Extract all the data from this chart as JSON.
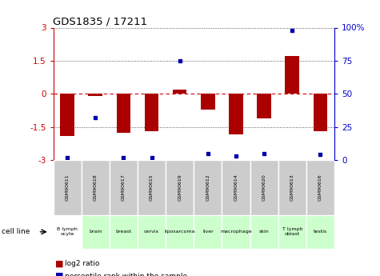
{
  "title": "GDS1835 / 17211",
  "samples": [
    "GSM90611",
    "GSM90618",
    "GSM90617",
    "GSM90615",
    "GSM90619",
    "GSM90612",
    "GSM90614",
    "GSM90620",
    "GSM90613",
    "GSM90616"
  ],
  "cell_lines": [
    "B lymph\nocyte",
    "brain",
    "breast",
    "cervix",
    "liposarcoma",
    "liver",
    "macrophage",
    "skin",
    "T lymph\noblast",
    "testis"
  ],
  "cell_line_colors": [
    "#ffffff",
    "#ccffcc",
    "#ccffcc",
    "#ccffcc",
    "#ccffcc",
    "#ccffcc",
    "#ccffcc",
    "#ccffcc",
    "#ccffcc",
    "#ccffcc"
  ],
  "log2_ratio": [
    -1.9,
    -0.1,
    -1.75,
    -1.7,
    0.2,
    -0.7,
    -1.85,
    -1.1,
    1.72,
    -1.7
  ],
  "percentile_rank": [
    2,
    32,
    2,
    2,
    75,
    5,
    3,
    5,
    98,
    4
  ],
  "ylim": [
    -3,
    3
  ],
  "yticks_left": [
    -3,
    -1.5,
    0,
    1.5,
    3
  ],
  "yticks_right": [
    0,
    25,
    50,
    75,
    100
  ],
  "bar_color": "#aa0000",
  "dot_color": "#0000aa",
  "background_color": "#ffffff",
  "grid_color": "#000000",
  "zero_line_color": "#cc0000",
  "gsm_bg_color": "#cccccc",
  "cell_bg_green": "#ccffcc"
}
